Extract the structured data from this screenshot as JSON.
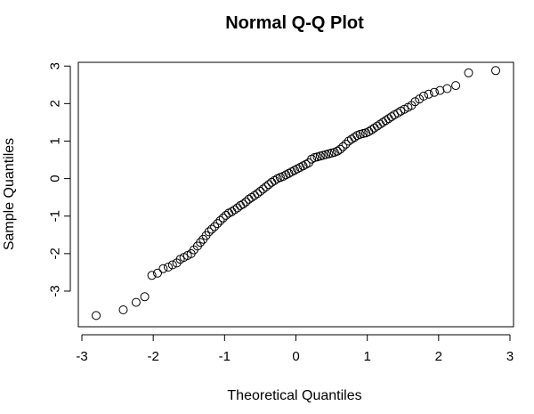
{
  "chart_data": {
    "type": "scatter",
    "title": "Normal Q-Q Plot",
    "xlabel": "Theoretical Quantiles",
    "ylabel": "Sample Quantiles",
    "xlim": [
      -3.05,
      3.05
    ],
    "ylim": [
      -3.95,
      3.1
    ],
    "xticks": [
      -3,
      -2,
      -1,
      0,
      1,
      2,
      3
    ],
    "yticks": [
      -3,
      -2,
      -1,
      0,
      1,
      2,
      3
    ],
    "grid": false,
    "legend": "none",
    "point_color": "#000000",
    "x": [
      -2.8,
      -2.42,
      -2.24,
      -2.12,
      -2.02,
      -1.94,
      -1.86,
      -1.79,
      -1.73,
      -1.67,
      -1.62,
      -1.57,
      -1.52,
      -1.47,
      -1.43,
      -1.38,
      -1.34,
      -1.3,
      -1.26,
      -1.22,
      -1.18,
      -1.14,
      -1.1,
      -1.06,
      -1.02,
      -0.98,
      -0.94,
      -0.9,
      -0.86,
      -0.82,
      -0.78,
      -0.74,
      -0.7,
      -0.66,
      -0.62,
      -0.58,
      -0.54,
      -0.5,
      -0.46,
      -0.42,
      -0.38,
      -0.34,
      -0.3,
      -0.26,
      -0.22,
      -0.18,
      -0.14,
      -0.1,
      -0.06,
      -0.02,
      0.02,
      0.06,
      0.1,
      0.14,
      0.18,
      0.22,
      0.26,
      0.3,
      0.34,
      0.38,
      0.42,
      0.46,
      0.5,
      0.54,
      0.58,
      0.62,
      0.66,
      0.7,
      0.74,
      0.78,
      0.82,
      0.86,
      0.9,
      0.94,
      0.98,
      1.02,
      1.06,
      1.1,
      1.14,
      1.18,
      1.22,
      1.26,
      1.3,
      1.34,
      1.38,
      1.43,
      1.47,
      1.52,
      1.57,
      1.62,
      1.67,
      1.73,
      1.79,
      1.86,
      1.94,
      2.02,
      2.12,
      2.24,
      2.42,
      2.8
    ],
    "y": [
      -3.65,
      -3.5,
      -3.3,
      -3.15,
      -2.58,
      -2.52,
      -2.4,
      -2.36,
      -2.3,
      -2.25,
      -2.15,
      -2.1,
      -2.05,
      -2.0,
      -1.9,
      -1.8,
      -1.7,
      -1.62,
      -1.52,
      -1.42,
      -1.35,
      -1.28,
      -1.2,
      -1.12,
      -1.05,
      -0.98,
      -0.92,
      -0.88,
      -0.83,
      -0.78,
      -0.72,
      -0.68,
      -0.62,
      -0.55,
      -0.5,
      -0.45,
      -0.4,
      -0.34,
      -0.28,
      -0.22,
      -0.16,
      -0.1,
      -0.05,
      0.0,
      0.03,
      0.06,
      0.1,
      0.14,
      0.18,
      0.22,
      0.26,
      0.3,
      0.34,
      0.38,
      0.42,
      0.52,
      0.56,
      0.58,
      0.6,
      0.62,
      0.64,
      0.66,
      0.68,
      0.7,
      0.73,
      0.78,
      0.85,
      0.92,
      1.0,
      1.05,
      1.1,
      1.15,
      1.18,
      1.2,
      1.22,
      1.25,
      1.3,
      1.35,
      1.4,
      1.45,
      1.5,
      1.55,
      1.6,
      1.65,
      1.7,
      1.75,
      1.8,
      1.85,
      1.9,
      1.95,
      2.05,
      2.12,
      2.2,
      2.25,
      2.3,
      2.35,
      2.4,
      2.48,
      2.82,
      2.88
    ]
  }
}
